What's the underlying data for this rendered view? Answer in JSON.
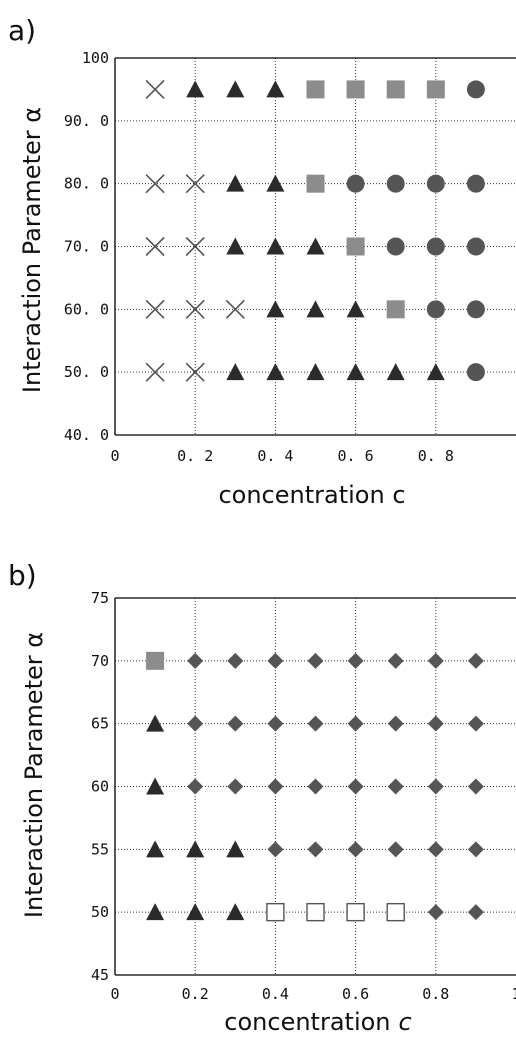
{
  "chart_data": [
    {
      "type": "scatter",
      "panel_label": "a)",
      "xlabel": "concentration c",
      "ylabel": "Interaction Parameter α",
      "xlim": [
        0,
        1.0
      ],
      "ylim": [
        40,
        100
      ],
      "x_ticks": [
        0,
        0.2,
        0.4,
        0.6,
        0.8
      ],
      "x_tick_labels": [
        "0",
        "0. 2",
        "0. 4",
        "0. 6",
        "0. 8"
      ],
      "y_ticks": [
        40,
        50,
        60,
        70,
        80,
        90,
        100
      ],
      "y_tick_labels": [
        "40. 0",
        "50. 0",
        "60. 0",
        "70. 0",
        "80. 0",
        "90. 0",
        "100"
      ],
      "grid": true,
      "series": [
        {
          "marker": "cross",
          "color": "#555555",
          "points": [
            [
              0.1,
              95
            ],
            [
              0.1,
              80
            ],
            [
              0.2,
              80
            ],
            [
              0.1,
              70
            ],
            [
              0.2,
              70
            ],
            [
              0.1,
              60
            ],
            [
              0.2,
              60
            ],
            [
              0.3,
              60
            ],
            [
              0.1,
              50
            ],
            [
              0.2,
              50
            ]
          ]
        },
        {
          "marker": "triangle",
          "color": "#2b2b2b",
          "points": [
            [
              0.2,
              95
            ],
            [
              0.3,
              95
            ],
            [
              0.4,
              95
            ],
            [
              0.3,
              80
            ],
            [
              0.4,
              80
            ],
            [
              0.3,
              70
            ],
            [
              0.4,
              70
            ],
            [
              0.5,
              70
            ],
            [
              0.4,
              60
            ],
            [
              0.5,
              60
            ],
            [
              0.6,
              60
            ],
            [
              0.3,
              50
            ],
            [
              0.4,
              50
            ],
            [
              0.5,
              50
            ],
            [
              0.6,
              50
            ],
            [
              0.7,
              50
            ],
            [
              0.8,
              50
            ]
          ]
        },
        {
          "marker": "square",
          "color": "#8c8c8c",
          "points": [
            [
              0.5,
              95
            ],
            [
              0.6,
              95
            ],
            [
              0.7,
              95
            ],
            [
              0.8,
              95
            ],
            [
              0.5,
              80
            ],
            [
              0.6,
              70
            ],
            [
              0.7,
              60
            ]
          ]
        },
        {
          "marker": "circle",
          "color": "#555555",
          "points": [
            [
              0.9,
              95
            ],
            [
              0.6,
              80
            ],
            [
              0.7,
              80
            ],
            [
              0.8,
              80
            ],
            [
              0.9,
              80
            ],
            [
              0.7,
              70
            ],
            [
              0.8,
              70
            ],
            [
              0.9,
              70
            ],
            [
              0.8,
              60
            ],
            [
              0.9,
              60
            ],
            [
              0.9,
              50
            ]
          ]
        }
      ]
    },
    {
      "type": "scatter",
      "panel_label": "b)",
      "xlabel": "concentration",
      "xlabel_symbol": "c",
      "ylabel": "Interaction Parameter α",
      "xlim": [
        0,
        1.0
      ],
      "ylim": [
        45,
        75
      ],
      "x_ticks": [
        0,
        0.2,
        0.4,
        0.6,
        0.8,
        1.0
      ],
      "x_tick_labels": [
        "0",
        "0.2",
        "0.4",
        "0.6",
        "0.8",
        "1"
      ],
      "y_ticks": [
        45,
        50,
        55,
        60,
        65,
        70,
        75
      ],
      "y_tick_labels": [
        "45",
        "50",
        "55",
        "60",
        "65",
        "70",
        "75"
      ],
      "grid": true,
      "series": [
        {
          "marker": "square",
          "color": "#8c8c8c",
          "points": [
            [
              0.1,
              70
            ]
          ]
        },
        {
          "marker": "diamond",
          "color": "#555555",
          "points": [
            [
              0.2,
              70
            ],
            [
              0.3,
              70
            ],
            [
              0.4,
              70
            ],
            [
              0.5,
              70
            ],
            [
              0.6,
              70
            ],
            [
              0.7,
              70
            ],
            [
              0.8,
              70
            ],
            [
              0.9,
              70
            ],
            [
              0.2,
              65
            ],
            [
              0.3,
              65
            ],
            [
              0.4,
              65
            ],
            [
              0.5,
              65
            ],
            [
              0.6,
              65
            ],
            [
              0.7,
              65
            ],
            [
              0.8,
              65
            ],
            [
              0.9,
              65
            ],
            [
              0.2,
              60
            ],
            [
              0.3,
              60
            ],
            [
              0.4,
              60
            ],
            [
              0.5,
              60
            ],
            [
              0.6,
              60
            ],
            [
              0.7,
              60
            ],
            [
              0.8,
              60
            ],
            [
              0.9,
              60
            ],
            [
              0.4,
              55
            ],
            [
              0.5,
              55
            ],
            [
              0.6,
              55
            ],
            [
              0.7,
              55
            ],
            [
              0.8,
              55
            ],
            [
              0.9,
              55
            ],
            [
              0.8,
              50
            ],
            [
              0.9,
              50
            ]
          ]
        },
        {
          "marker": "triangle",
          "color": "#2b2b2b",
          "points": [
            [
              0.1,
              65
            ],
            [
              0.1,
              60
            ],
            [
              0.1,
              55
            ],
            [
              0.2,
              55
            ],
            [
              0.3,
              55
            ],
            [
              0.1,
              50
            ],
            [
              0.2,
              50
            ],
            [
              0.3,
              50
            ]
          ]
        },
        {
          "marker": "open-square",
          "color": "#555555",
          "points": [
            [
              0.4,
              50
            ],
            [
              0.5,
              50
            ],
            [
              0.6,
              50
            ],
            [
              0.7,
              50
            ]
          ]
        }
      ]
    }
  ]
}
